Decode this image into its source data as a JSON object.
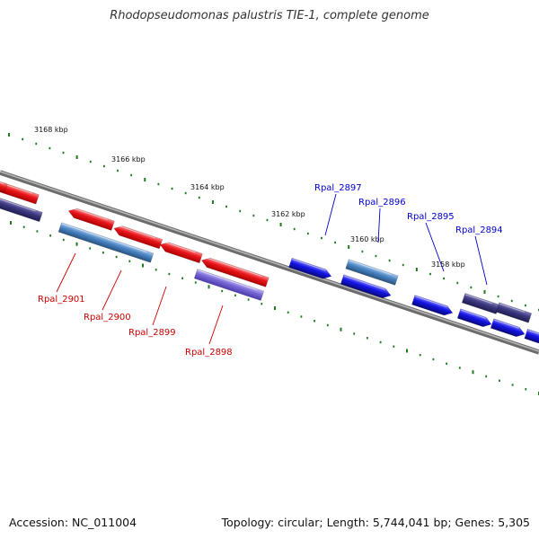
{
  "title": "Rhodopseudomonas palustris TIE-1, complete genome",
  "accession_text": "Accession: NC_011004",
  "summary_text": "Topology: circular; Length: 5,744,041 bp; Genes: 5,305",
  "colors": {
    "tick": "#1f7a1f",
    "backbone": "#8a8a8a",
    "red_gene": "#e8161b",
    "blue_gene": "#1414e6",
    "steelblue_gene": "#4a84c4",
    "navy_gene": "#3b3880",
    "purple_gene": "#7766d6",
    "label_red": "#cc0000",
    "label_blue": "#0000cc"
  },
  "scale_labels": [
    "3168 kbp",
    "3166 kbp",
    "3164 kbp",
    "3162 kbp",
    "3160 kbp",
    "3158 kbp"
  ],
  "gene_labels": [
    {
      "text": "Rpal_2897",
      "color": "blue"
    },
    {
      "text": "Rpal_2896",
      "color": "blue"
    },
    {
      "text": "Rpal_2895",
      "color": "blue"
    },
    {
      "text": "Rpal_2894",
      "color": "blue"
    },
    {
      "text": "Rpal_2901",
      "color": "red"
    },
    {
      "text": "Rpal_2900",
      "color": "red"
    },
    {
      "text": "Rpal_2899",
      "color": "red"
    },
    {
      "text": "Rpal_2898",
      "color": "red"
    }
  ]
}
